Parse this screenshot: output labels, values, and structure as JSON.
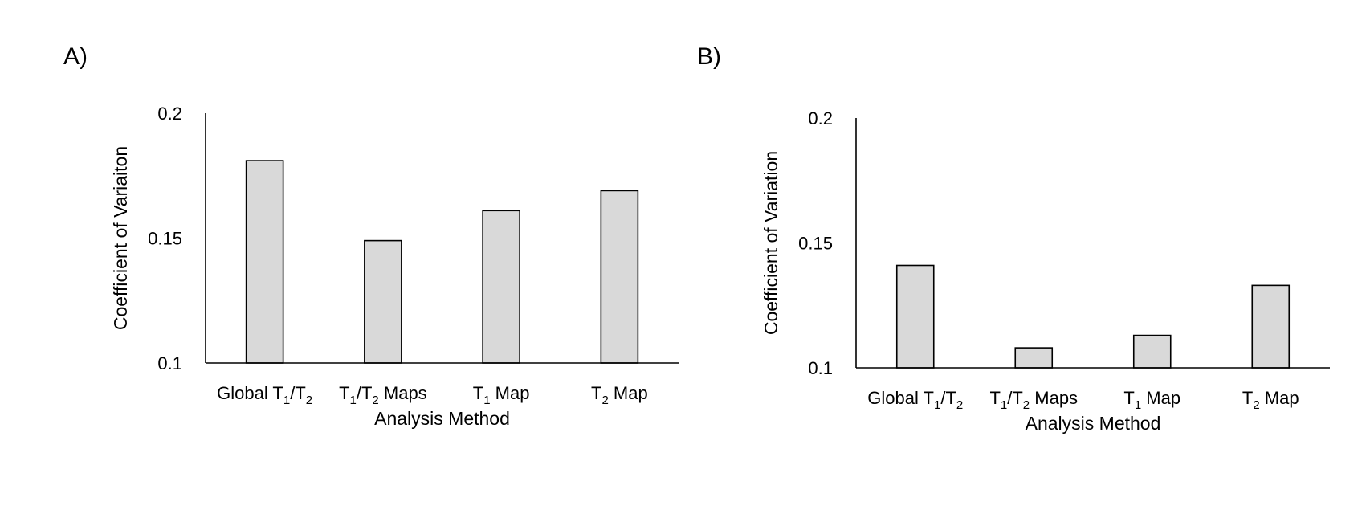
{
  "chart_data": [
    {
      "type": "bar",
      "panel_label": "A)",
      "categories": [
        "Global T1/T2",
        "T1/T2 Maps",
        "T1 Map",
        "T2 Map"
      ],
      "category_labels": [
        [
          {
            "t": "Global T"
          },
          {
            "t": "1",
            "sub": true
          },
          {
            "t": "/T"
          },
          {
            "t": "2",
            "sub": true
          }
        ],
        [
          {
            "t": "T"
          },
          {
            "t": "1",
            "sub": true
          },
          {
            "t": "/T"
          },
          {
            "t": "2",
            "sub": true
          },
          {
            "t": " Maps"
          }
        ],
        [
          {
            "t": "T"
          },
          {
            "t": "1",
            "sub": true
          },
          {
            "t": " Map"
          }
        ],
        [
          {
            "t": "T"
          },
          {
            "t": "2",
            "sub": true
          },
          {
            "t": " Map"
          }
        ]
      ],
      "values": [
        0.181,
        0.149,
        0.161,
        0.169
      ],
      "xlabel": "Analysis Method",
      "ylabel": "Coefficient of Variaiton",
      "ylim": [
        0.1,
        0.2
      ],
      "yticks": [
        "0.1",
        "0.15",
        "0.2"
      ],
      "grid": false
    },
    {
      "type": "bar",
      "panel_label": "B)",
      "categories": [
        "Global T1/T2",
        "T1/T2 Maps",
        "T1 Map",
        "T2 Map"
      ],
      "category_labels": [
        [
          {
            "t": "Global T"
          },
          {
            "t": "1",
            "sub": true
          },
          {
            "t": "/T"
          },
          {
            "t": "2",
            "sub": true
          }
        ],
        [
          {
            "t": "T"
          },
          {
            "t": "1",
            "sub": true
          },
          {
            "t": "/T"
          },
          {
            "t": "2",
            "sub": true
          },
          {
            "t": " Maps"
          }
        ],
        [
          {
            "t": "T"
          },
          {
            "t": "1",
            "sub": true
          },
          {
            "t": " Map"
          }
        ],
        [
          {
            "t": "T"
          },
          {
            "t": "2",
            "sub": true
          },
          {
            "t": " Map"
          }
        ]
      ],
      "values": [
        0.141,
        0.108,
        0.113,
        0.133
      ],
      "xlabel": "Analysis Method",
      "ylabel": "Coefficient of Variation",
      "ylim": [
        0.1,
        0.2
      ],
      "yticks": [
        "0.1",
        "0.15",
        "0.2"
      ],
      "grid": false
    }
  ]
}
